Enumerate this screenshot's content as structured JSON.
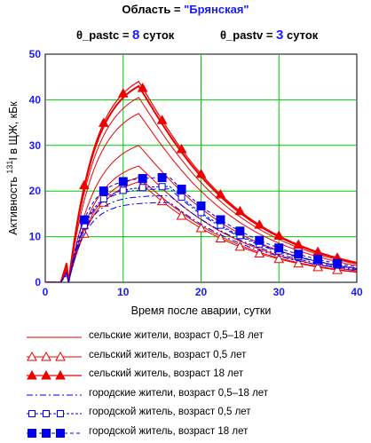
{
  "header": {
    "region_label": "Область = ",
    "region_value": "\"Брянская\"",
    "param1_label": "θ_pastc = ",
    "param1_value": "8",
    "param1_unit": "суток",
    "param2_label": "θ_pastv = ",
    "param2_value": "3",
    "param2_unit": "суток"
  },
  "chart_data": {
    "type": "line",
    "xlabel": "Время после аварии, сутки",
    "ylabel_prefix": "Активность ",
    "ylabel_sup": "131",
    "ylabel_suffix": "I в ЩЖ, кБк",
    "xlim": [
      0,
      40
    ],
    "ylim": [
      0,
      50
    ],
    "xticks": [
      0,
      10,
      20,
      30,
      40
    ],
    "yticks": [
      0,
      10,
      20,
      30,
      40,
      50
    ],
    "grid": true,
    "grid_color": "#00cc00",
    "series_colors": {
      "rural": "#ee0000",
      "urban": "#0000ee"
    },
    "curves": [
      {
        "group": "rural",
        "style": "thin-solid",
        "peak": 23
      },
      {
        "group": "rural",
        "style": "thin-solid",
        "peak": 25.5
      },
      {
        "group": "rural",
        "style": "thin-solid",
        "peak": 30
      },
      {
        "group": "rural",
        "style": "thin-solid",
        "peak": 37
      },
      {
        "group": "rural",
        "style": "thin-solid",
        "peak": 40.5
      },
      {
        "group": "rural",
        "style": "open-triangle",
        "peak": 22
      },
      {
        "group": "rural",
        "style": "filled-triangle",
        "peak": 44
      },
      {
        "group": "rural",
        "style": "filled-triangle-line",
        "peak": 43
      },
      {
        "group": "urban",
        "style": "dash-dot",
        "peak": 17.5
      },
      {
        "group": "urban",
        "style": "dash-dot",
        "peak": 19
      },
      {
        "group": "urban",
        "style": "dash-dot",
        "peak": 20.5
      },
      {
        "group": "urban",
        "style": "open-square",
        "peak": 21
      },
      {
        "group": "urban",
        "style": "filled-square",
        "peak": 23
      }
    ],
    "legend": [
      {
        "style": "thin-solid",
        "color": "#ee0000",
        "label": "сельские жители, возраст  0,5–18 лет"
      },
      {
        "style": "open-triangle",
        "color": "#ee0000",
        "label": "сельский житель, возраст 0,5 лет"
      },
      {
        "style": "filled-triangle",
        "color": "#ee0000",
        "label": "сельский житель, возраст  18 лет"
      },
      {
        "style": "dash-dot",
        "color": "#0000ee",
        "label": "городские жители, возраст  0,5–18 лет"
      },
      {
        "style": "open-square",
        "color": "#0000ee",
        "label": "городской житель, возраст  0,5 лет"
      },
      {
        "style": "filled-square",
        "color": "#0000ee",
        "label": "городской житель, возраст 18 лет"
      }
    ]
  }
}
